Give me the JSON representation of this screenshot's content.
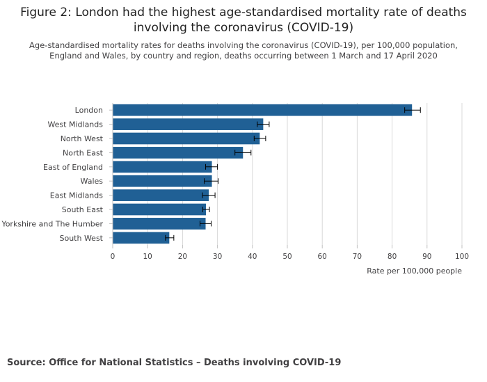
{
  "page": {
    "title": "Figure 2: London had the highest age-standardised mortality rate of deaths involving the coronavirus (COVID-19)",
    "subtitle": "Age-standardised mortality rates for deaths involving the coronavirus (COVID-19), per 100,000 population, England and Wales, by country and region, deaths occurring between 1 March and 17 April 2020",
    "source": "Source: Office for National Statistics – Deaths involving COVID-19"
  },
  "chart_data": {
    "type": "bar",
    "orientation": "horizontal",
    "title": "Figure 2: London had the highest age-standardised mortality rate of deaths involving the coronavirus (COVID-19)",
    "subtitle": "Age-standardised mortality rates for deaths involving the coronavirus (COVID-19), per 100,000 population, England and Wales, by country and region, deaths occurring between 1 March and 17 April 2020",
    "xlabel": "Rate per 100,000 people",
    "ylabel": "",
    "xlim": [
      0,
      100
    ],
    "xticks": [
      0,
      10,
      20,
      30,
      40,
      50,
      60,
      70,
      80,
      90,
      100
    ],
    "grid": true,
    "bar_color": "#206095",
    "categories": [
      "London",
      "West Midlands",
      "North West",
      "North East",
      "East of England",
      "Wales",
      "East Midlands",
      "South East",
      "Yorkshire and The Humber",
      "South West"
    ],
    "values": [
      85.7,
      43.1,
      42.1,
      37.3,
      28.4,
      28.4,
      27.5,
      26.7,
      26.6,
      16.2
    ],
    "error_low": [
      83.6,
      41.4,
      40.5,
      35.0,
      26.6,
      26.2,
      25.7,
      25.8,
      25.0,
      15.1
    ],
    "error_high": [
      88.1,
      44.8,
      43.8,
      39.6,
      30.0,
      30.2,
      29.3,
      27.7,
      28.2,
      17.5
    ]
  }
}
